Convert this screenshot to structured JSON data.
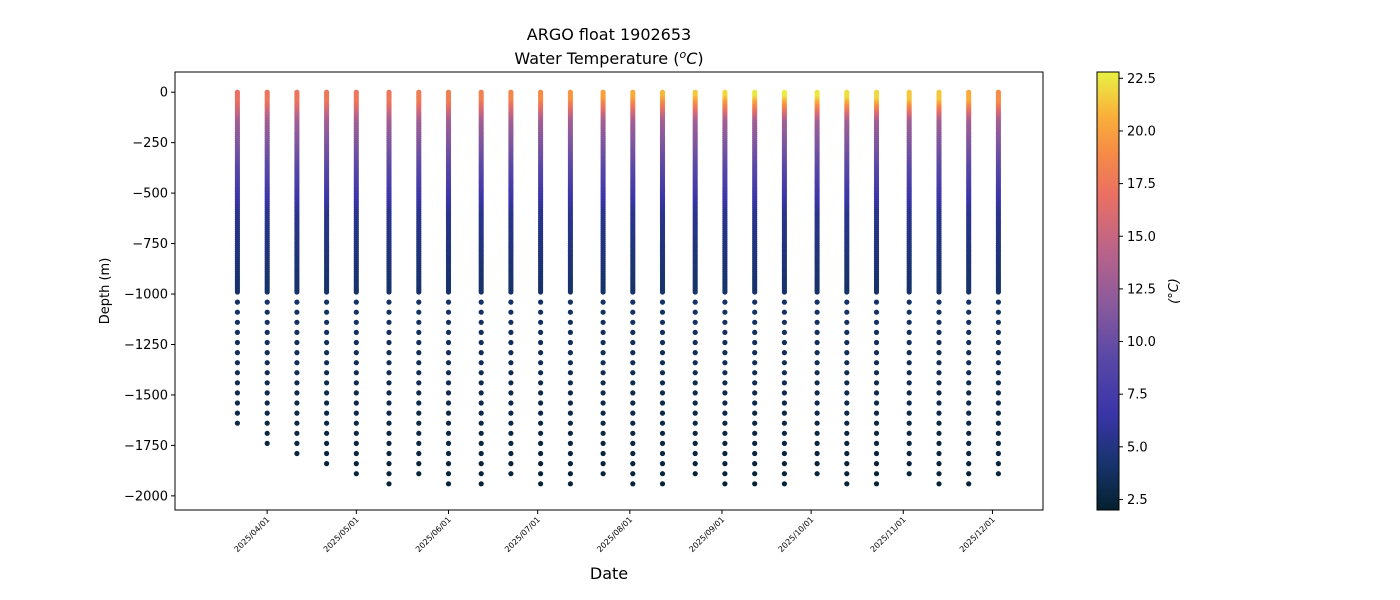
{
  "chart_data": {
    "type": "scatter",
    "title": "ARGO float 1902653",
    "subtitle_prefix": "Water Temperature (",
    "subtitle_unit_sup": "o",
    "subtitle_unit_main": "C",
    "subtitle_suffix": ")",
    "xlabel": "Date",
    "ylabel": "Depth (m)",
    "colorbar_label": "(°C)",
    "colormap": "thermal",
    "grid": false,
    "ylim": [
      -2070,
      100
    ],
    "xlim": [
      "2025-03-01",
      "2025-12-18"
    ],
    "y_ticks": [
      0,
      -250,
      -500,
      -750,
      -1000,
      -1250,
      -1500,
      -1750,
      -2000
    ],
    "y_tick_labels": [
      "0",
      "−250",
      "−500",
      "−750",
      "−1000",
      "−1250",
      "−1500",
      "−1750",
      "−2000"
    ],
    "x_ticks": [
      "2025-04-01",
      "2025-05-01",
      "2025-06-01",
      "2025-07-01",
      "2025-08-01",
      "2025-09-01",
      "2025-10-01",
      "2025-11-01",
      "2025-12-01"
    ],
    "x_tick_labels": [
      "2025/04/01",
      "2025/05/01",
      "2025/06/01",
      "2025/07/01",
      "2025/08/01",
      "2025/09/01",
      "2025/10/01",
      "2025/11/01",
      "2025/12/01"
    ],
    "color_range": [
      2.0,
      22.8
    ],
    "colorbar_ticks": [
      2.5,
      5.0,
      7.5,
      10.0,
      12.5,
      15.0,
      17.5,
      20.0,
      22.5
    ],
    "colorbar_tick_labels": [
      "2.5",
      "5.0",
      "7.5",
      "10.0",
      "12.5",
      "15.0",
      "17.5",
      "20.0",
      "22.5"
    ],
    "profiles": [
      {
        "date": "2025-03-22",
        "max_depth": 1680,
        "surface_temp": 17.0,
        "mixed_layer": 50
      },
      {
        "date": "2025-04-01",
        "max_depth": 1780,
        "surface_temp": 17.3,
        "mixed_layer": 50
      },
      {
        "date": "2025-04-11",
        "max_depth": 1830,
        "surface_temp": 17.3,
        "mixed_layer": 50
      },
      {
        "date": "2025-04-21",
        "max_depth": 1880,
        "surface_temp": 17.5,
        "mixed_layer": 50
      },
      {
        "date": "2025-05-01",
        "max_depth": 1930,
        "surface_temp": 17.5,
        "mixed_layer": 50
      },
      {
        "date": "2025-05-12",
        "max_depth": 1980,
        "surface_temp": 17.5,
        "mixed_layer": 50
      },
      {
        "date": "2025-05-22",
        "max_depth": 1930,
        "surface_temp": 17.8,
        "mixed_layer": 50
      },
      {
        "date": "2025-06-01",
        "max_depth": 1980,
        "surface_temp": 18.0,
        "mixed_layer": 50
      },
      {
        "date": "2025-06-12",
        "max_depth": 1980,
        "surface_temp": 18.2,
        "mixed_layer": 40
      },
      {
        "date": "2025-06-22",
        "max_depth": 1930,
        "surface_temp": 18.5,
        "mixed_layer": 40
      },
      {
        "date": "2025-07-02",
        "max_depth": 1980,
        "surface_temp": 19.0,
        "mixed_layer": 40
      },
      {
        "date": "2025-07-12",
        "max_depth": 1980,
        "surface_temp": 19.5,
        "mixed_layer": 35
      },
      {
        "date": "2025-07-23",
        "max_depth": 1930,
        "surface_temp": 20.0,
        "mixed_layer": 30
      },
      {
        "date": "2025-08-02",
        "max_depth": 1980,
        "surface_temp": 20.5,
        "mixed_layer": 25
      },
      {
        "date": "2025-08-12",
        "max_depth": 1980,
        "surface_temp": 21.0,
        "mixed_layer": 20
      },
      {
        "date": "2025-08-23",
        "max_depth": 1930,
        "surface_temp": 21.5,
        "mixed_layer": 20
      },
      {
        "date": "2025-09-02",
        "max_depth": 1980,
        "surface_temp": 22.0,
        "mixed_layer": 20
      },
      {
        "date": "2025-09-12",
        "max_depth": 1980,
        "surface_temp": 22.5,
        "mixed_layer": 20
      },
      {
        "date": "2025-09-22",
        "max_depth": 1980,
        "surface_temp": 22.7,
        "mixed_layer": 20
      },
      {
        "date": "2025-10-03",
        "max_depth": 1930,
        "surface_temp": 22.5,
        "mixed_layer": 25
      },
      {
        "date": "2025-10-13",
        "max_depth": 1980,
        "surface_temp": 22.2,
        "mixed_layer": 30
      },
      {
        "date": "2025-10-23",
        "max_depth": 1980,
        "surface_temp": 22.0,
        "mixed_layer": 35
      },
      {
        "date": "2025-11-03",
        "max_depth": 1930,
        "surface_temp": 21.5,
        "mixed_layer": 40
      },
      {
        "date": "2025-11-13",
        "max_depth": 1980,
        "surface_temp": 21.5,
        "mixed_layer": 40
      },
      {
        "date": "2025-11-23",
        "max_depth": 1980,
        "surface_temp": 20.5,
        "mixed_layer": 45
      },
      {
        "date": "2025-12-03",
        "max_depth": 1930,
        "surface_temp": 19.0,
        "mixed_layer": 50
      }
    ]
  }
}
